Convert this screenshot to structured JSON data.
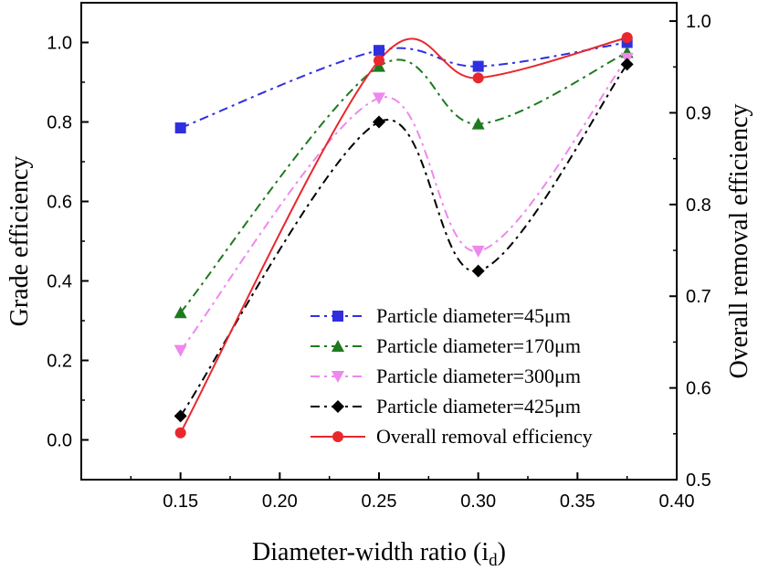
{
  "chart_data": {
    "type": "line",
    "x": [
      0.15,
      0.25,
      0.3,
      0.375
    ],
    "xlim": [
      0.1,
      0.4
    ],
    "xticks": [
      "0.15",
      "0.20",
      "0.25",
      "0.30",
      "0.35",
      "0.40"
    ],
    "xlabel": "Diameter-width ratio (i",
    "xlabel_sub": "d",
    "xlabel_close": ")",
    "ylabel": "Grade efficiency",
    "ylim": [
      -0.1,
      1.1
    ],
    "yticks": [
      "0.0",
      "0.2",
      "0.4",
      "0.6",
      "0.8",
      "1.0"
    ],
    "y2label": "Overall removal efficiency",
    "y2lim": [
      0.5,
      1.02
    ],
    "y2ticks": [
      "0.5",
      "0.6",
      "0.7",
      "0.8",
      "0.9",
      "1.0"
    ],
    "legend_position": "bottom-right",
    "series": [
      {
        "name": "Particle diameter=45μm",
        "values": [
          0.785,
          0.98,
          0.94,
          1.0
        ],
        "axis": "left",
        "color": "#2f2fe0",
        "marker": "square",
        "dash": "dashdot",
        "smooth": true
      },
      {
        "name": "Particle diameter=170μm",
        "values": [
          0.32,
          0.94,
          0.795,
          0.975
        ],
        "axis": "left",
        "color": "#1e7a1e",
        "marker": "triangle-up",
        "dash": "dashdot",
        "smooth": true
      },
      {
        "name": "Particle diameter=300μm",
        "values": [
          0.225,
          0.86,
          0.475,
          0.96
        ],
        "axis": "left",
        "color": "#ee88ee",
        "marker": "triangle-down",
        "dash": "dashdot",
        "smooth": true
      },
      {
        "name": "Particle diameter=425μm",
        "values": [
          0.06,
          0.8,
          0.425,
          0.945
        ],
        "axis": "left",
        "color": "#000000",
        "marker": "diamond",
        "dash": "dashdot",
        "smooth": true
      },
      {
        "name": "Overall removal efficiency",
        "values": [
          0.551,
          0.957,
          0.938,
          0.982
        ],
        "axis": "right",
        "color": "#e8282d",
        "marker": "circle",
        "dash": "solid",
        "smooth": true
      }
    ]
  }
}
